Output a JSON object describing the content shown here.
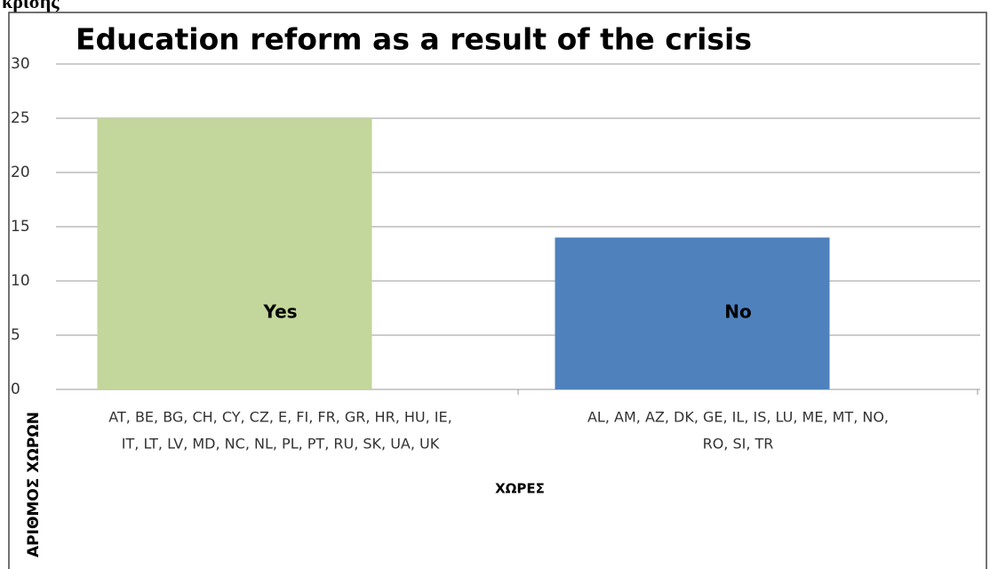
{
  "caption_fragment": "κρίσης",
  "chart_data": {
    "type": "bar",
    "title": "Education reform as a result of the crisis",
    "categories": [
      [
        "AT, BE, BG, CH, CY, CZ, E, FI, FR, GR, HR, HU, IE,",
        "IT, LT, LV, MD, NC, NL, PL, PT, RU, SK, UA, UK"
      ],
      [
        "AL, AM, AZ, DK, GE, IL, IS, LU, ME, MT, NO,",
        "RO, SI, TR"
      ]
    ],
    "values": [
      25,
      14
    ],
    "bar_labels": [
      "Yes",
      "No"
    ],
    "colors": [
      "#c3d69b",
      "#4f81bd"
    ],
    "xlabel": "ΧΩΡΕΣ",
    "ylabel": "ΑΡΙΘΜΟΣ ΧΩΡΩΝ",
    "ylim": [
      0,
      30
    ],
    "yticks": [
      0,
      5,
      10,
      15,
      20,
      25,
      30
    ],
    "grid": true
  }
}
